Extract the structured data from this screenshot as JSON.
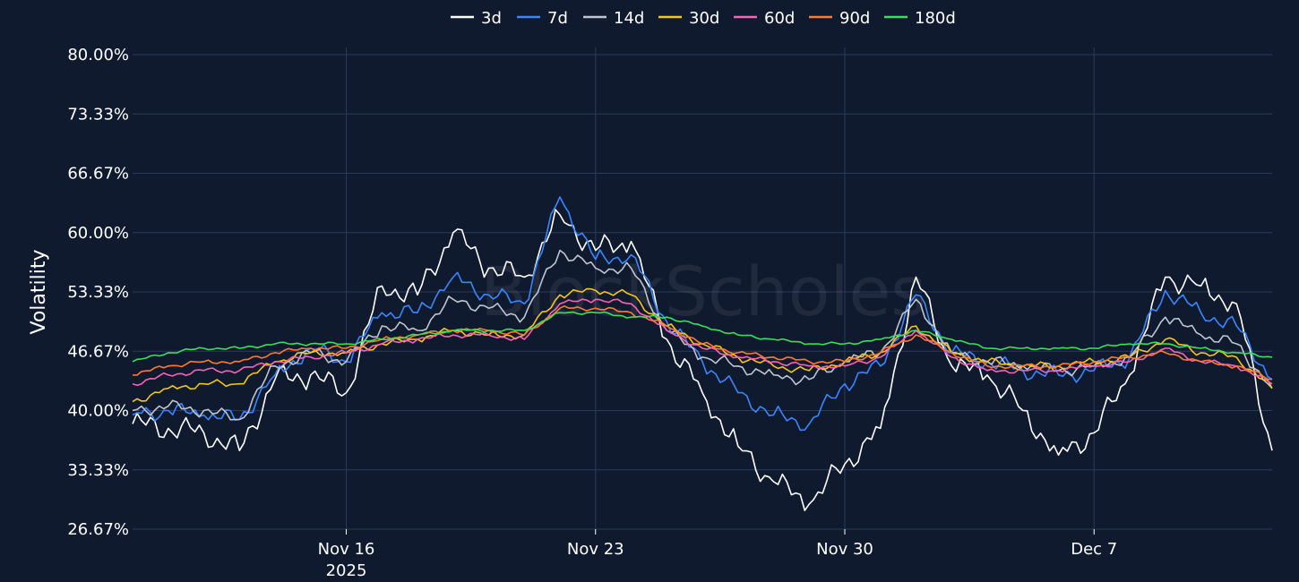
{
  "watermark": "BlockScholes",
  "chart_data": {
    "type": "line",
    "title": "",
    "xlabel": "",
    "ylabel": "Volatility",
    "legend_position": "top-center",
    "grid": true,
    "x_range": [
      "2025-11-10",
      "2025-12-12"
    ],
    "ylim": [
      26.67,
      80.0
    ],
    "y_ticks": [
      "80.00%",
      "73.33%",
      "66.67%",
      "60.00%",
      "53.33%",
      "46.67%",
      "40.00%",
      "33.33%",
      "26.67%"
    ],
    "x_ticks": [
      {
        "date": "2025-11-16",
        "label": "Nov 16",
        "sublabel": "2025"
      },
      {
        "date": "2025-11-23",
        "label": "Nov 23",
        "sublabel": ""
      },
      {
        "date": "2025-11-30",
        "label": "Nov 30",
        "sublabel": ""
      },
      {
        "date": "2025-12-07",
        "label": "Dec 7",
        "sublabel": ""
      }
    ],
    "x": [
      "2025-11-10",
      "2025-11-11",
      "2025-11-12",
      "2025-11-13",
      "2025-11-14",
      "2025-11-15",
      "2025-11-16",
      "2025-11-17",
      "2025-11-18",
      "2025-11-19",
      "2025-11-20",
      "2025-11-21",
      "2025-11-22",
      "2025-11-23",
      "2025-11-24",
      "2025-11-25",
      "2025-11-26",
      "2025-11-27",
      "2025-11-28",
      "2025-11-29",
      "2025-11-30",
      "2025-12-01",
      "2025-12-02",
      "2025-12-03",
      "2025-12-04",
      "2025-12-05",
      "2025-12-06",
      "2025-12-07",
      "2025-12-08",
      "2025-12-09",
      "2025-12-10",
      "2025-12-11",
      "2025-12-12"
    ],
    "series": [
      {
        "name": "3d",
        "color": "#ffffff",
        "values": [
          38.5,
          38.0,
          37.5,
          35.5,
          43.5,
          44.0,
          42.0,
          54.0,
          53.0,
          60.0,
          56.0,
          55.0,
          62.0,
          58.0,
          59.0,
          48.0,
          42.0,
          36.0,
          32.0,
          29.5,
          34.0,
          38.0,
          55.0,
          45.0,
          44.0,
          40.0,
          35.0,
          37.5,
          44.0,
          55.0,
          54.0,
          52.0,
          35.5
        ]
      },
      {
        "name": "7d",
        "color": "#3a86ff",
        "values": [
          39.5,
          40.0,
          39.5,
          39.0,
          44.0,
          47.0,
          45.5,
          51.0,
          51.0,
          55.0,
          53.0,
          52.0,
          64.0,
          57.0,
          57.5,
          50.0,
          45.5,
          42.0,
          39.5,
          38.5,
          43.0,
          45.0,
          53.0,
          46.5,
          45.5,
          44.5,
          44.0,
          44.5,
          46.0,
          53.5,
          51.0,
          49.5,
          43.5
        ]
      },
      {
        "name": "14d",
        "color": "#c0c4d0",
        "values": [
          40.0,
          40.5,
          40.0,
          39.0,
          45.0,
          46.5,
          45.5,
          49.5,
          49.0,
          52.5,
          51.5,
          50.5,
          58.0,
          56.0,
          56.0,
          49.0,
          46.0,
          45.0,
          44.0,
          43.5,
          45.5,
          46.5,
          52.5,
          46.5,
          45.5,
          45.0,
          44.5,
          45.0,
          46.0,
          50.5,
          48.5,
          47.5,
          42.5
        ]
      },
      {
        "name": "30d",
        "color": "#f5c518",
        "values": [
          41.0,
          42.5,
          43.0,
          43.0,
          45.5,
          46.5,
          46.5,
          47.5,
          48.0,
          49.0,
          48.5,
          48.5,
          53.0,
          53.5,
          53.0,
          49.5,
          47.5,
          46.0,
          45.0,
          44.5,
          45.5,
          46.5,
          49.5,
          46.5,
          45.5,
          45.0,
          45.0,
          45.5,
          46.0,
          48.0,
          46.5,
          46.0,
          42.5
        ]
      },
      {
        "name": "60d",
        "color": "#ff5fb8",
        "values": [
          43.0,
          44.0,
          44.5,
          44.5,
          45.5,
          46.0,
          46.5,
          47.5,
          48.0,
          48.5,
          48.5,
          48.0,
          52.0,
          52.5,
          52.0,
          49.0,
          47.0,
          46.0,
          45.5,
          45.0,
          45.0,
          46.0,
          49.0,
          46.0,
          44.5,
          44.5,
          44.5,
          45.0,
          45.5,
          47.0,
          45.5,
          45.0,
          43.0
        ]
      },
      {
        "name": "90d",
        "color": "#ff7a2f",
        "values": [
          44.0,
          45.0,
          45.5,
          45.5,
          46.5,
          47.0,
          47.0,
          48.0,
          48.5,
          49.0,
          49.0,
          48.5,
          51.5,
          51.5,
          51.0,
          49.5,
          47.5,
          46.5,
          46.0,
          45.5,
          45.5,
          46.5,
          48.5,
          46.5,
          45.0,
          45.0,
          45.0,
          45.5,
          46.0,
          46.5,
          45.5,
          45.0,
          43.5
        ]
      },
      {
        "name": "180d",
        "color": "#39e05a",
        "values": [
          45.5,
          46.5,
          47.0,
          47.0,
          47.5,
          47.5,
          47.5,
          48.0,
          48.5,
          49.0,
          49.0,
          49.0,
          51.0,
          51.0,
          50.5,
          50.5,
          49.5,
          48.5,
          48.0,
          47.5,
          47.5,
          48.0,
          49.0,
          48.0,
          47.0,
          47.0,
          47.0,
          47.0,
          47.5,
          47.5,
          47.0,
          46.5,
          46.0
        ]
      }
    ]
  }
}
